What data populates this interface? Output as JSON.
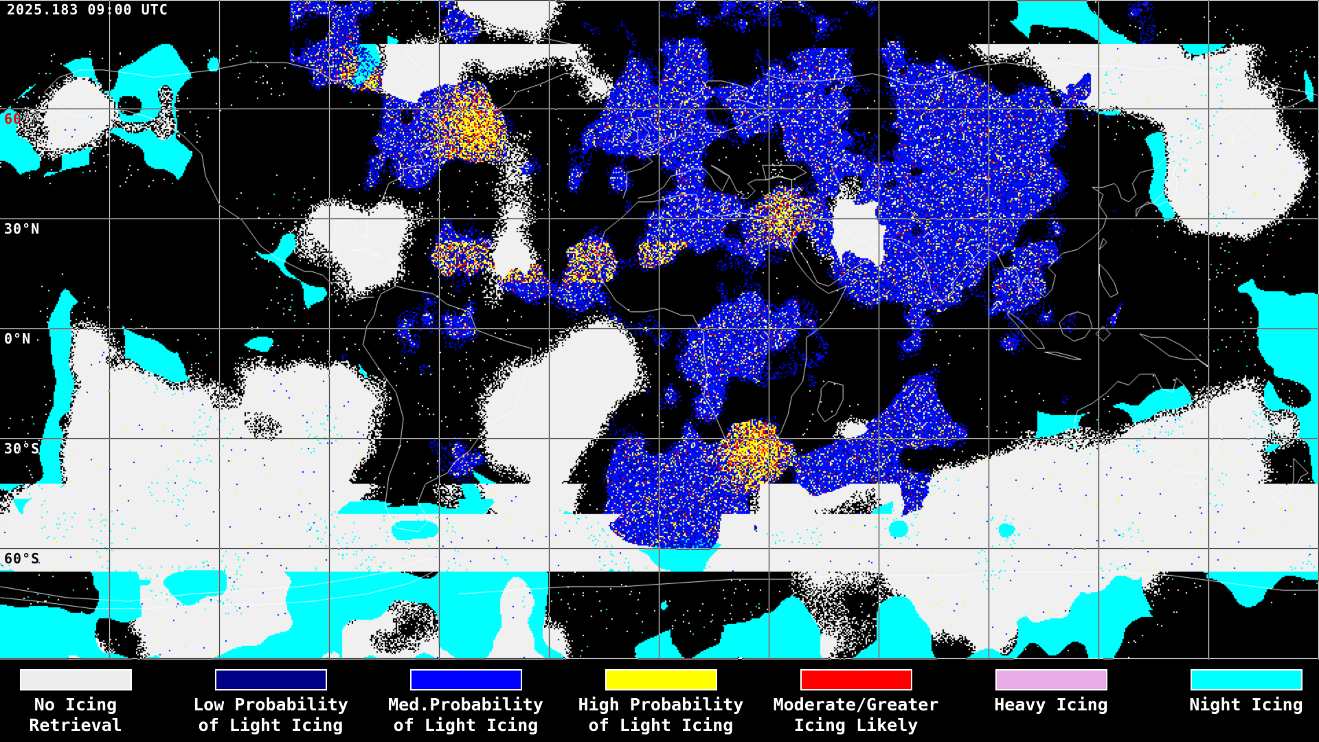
{
  "header": {
    "timestamp": "2025.183 09:00 UTC"
  },
  "map": {
    "lat_labels": [
      "60°N",
      "30°N",
      "0°N",
      "30°S",
      "60°S"
    ],
    "palette": {
      "background": "#000000",
      "cloud": "#F0F0F0",
      "coastline": "#FFFFFF",
      "grid": "#FFFFFF",
      "white_speck": "#FFFFFF",
      "low": "#000088",
      "med": "#0010FF",
      "high": "#FFFF00",
      "moderate": "#FF0000",
      "heavy": "#E8ACE8",
      "night": "#00FFFF"
    }
  },
  "legend": {
    "items": [
      {
        "label_line1": "No Icing",
        "label_line2": "Retrieval",
        "color": "#ECECEC"
      },
      {
        "label_line1": "Low Probability",
        "label_line2": "of Light Icing",
        "color": "#000088"
      },
      {
        "label_line1": "Med.Probability",
        "label_line2": "of Light Icing",
        "color": "#0000FF"
      },
      {
        "label_line1": "High Probability",
        "label_line2": "of Light Icing",
        "color": "#FFFF00"
      },
      {
        "label_line1": "Moderate/Greater",
        "label_line2": "Icing Likely",
        "color": "#FF0000"
      },
      {
        "label_line1": "Heavy Icing",
        "label_line2": "",
        "color": "#E8ACE8"
      },
      {
        "label_line1": "Night Icing",
        "label_line2": "",
        "color": "#00FFFF"
      }
    ]
  }
}
